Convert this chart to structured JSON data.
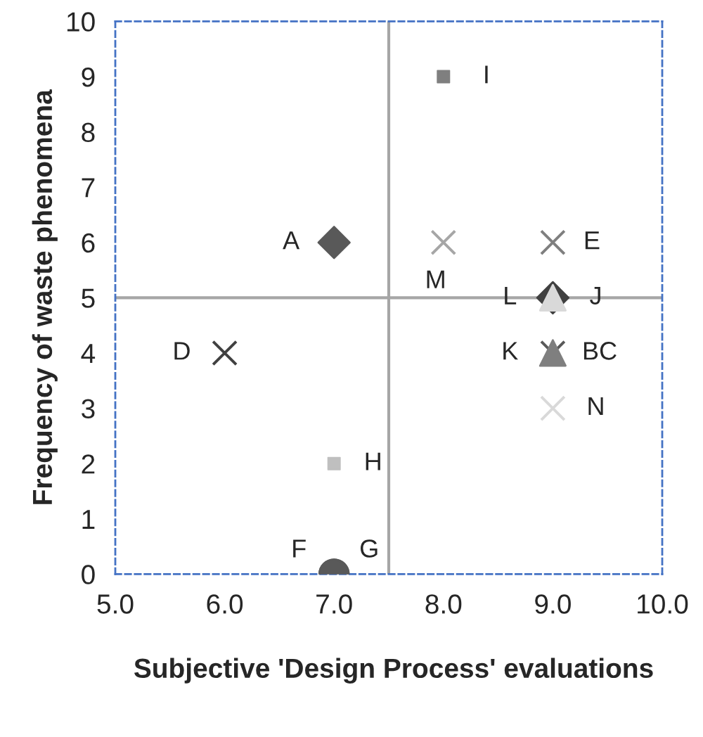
{
  "chart_data": {
    "type": "scatter",
    "xlabel": "Subjective 'Design Process' evaluations",
    "ylabel": "Frequency of waste phenomena",
    "xlim": [
      5,
      10
    ],
    "xticks": [
      {
        "value": 5,
        "label": "5.0"
      },
      {
        "value": 6,
        "label": "6.0"
      },
      {
        "value": 7,
        "label": "7.0"
      },
      {
        "value": 8,
        "label": "8.0"
      },
      {
        "value": 9,
        "label": "9.0"
      },
      {
        "value": 10,
        "label": "10.0"
      }
    ],
    "ylim": [
      0,
      10
    ],
    "yticks": [
      0,
      1,
      2,
      3,
      4,
      5,
      6,
      7,
      8,
      9,
      10
    ],
    "grid": false,
    "ref_lines": [
      {
        "axis": "x",
        "value": 7.5,
        "color": "#a6a6a6"
      },
      {
        "axis": "y",
        "value": 5,
        "color": "#a6a6a6"
      }
    ],
    "series": [
      {
        "name": "A",
        "x": [
          7
        ],
        "values": [
          6
        ],
        "marker": "diamond",
        "color": "#595959"
      },
      {
        "name": "D",
        "x": [
          6
        ],
        "values": [
          4
        ],
        "marker": "cross",
        "color": "#404040"
      },
      {
        "name": "E",
        "x": [
          9
        ],
        "values": [
          6
        ],
        "marker": "cross",
        "color": "#7f7f7f"
      },
      {
        "name": "F",
        "x": [
          7
        ],
        "values": [
          0
        ],
        "marker": "circle",
        "color": "#595959"
      },
      {
        "name": "G",
        "x": [
          7
        ],
        "values": [
          0
        ],
        "marker": "circle",
        "color": "#595959"
      },
      {
        "name": "H",
        "x": [
          7
        ],
        "values": [
          2
        ],
        "marker": "square",
        "color": "#bfbfbf"
      },
      {
        "name": "I",
        "x": [
          8
        ],
        "values": [
          9
        ],
        "marker": "square",
        "color": "#7f7f7f"
      },
      {
        "name": "K",
        "x": [
          9
        ],
        "values": [
          4
        ],
        "marker": "cross",
        "color": "#595959"
      },
      {
        "name": "BC",
        "x": [
          9
        ],
        "values": [
          4
        ],
        "marker": "triangle",
        "color": "#7f7f7f"
      },
      {
        "name": "L",
        "x": [
          9
        ],
        "values": [
          5
        ],
        "marker": "diamond",
        "color": "#404040"
      },
      {
        "name": "J",
        "x": [
          9
        ],
        "values": [
          5
        ],
        "marker": "triangle",
        "color": "#d9d9d9"
      },
      {
        "name": "M",
        "x": [
          8
        ],
        "values": [
          6
        ],
        "marker": "cross",
        "color": "#a6a6a6"
      },
      {
        "name": "N",
        "x": [
          9
        ],
        "values": [
          3
        ],
        "marker": "cross",
        "color": "#d9d9d9"
      }
    ]
  }
}
